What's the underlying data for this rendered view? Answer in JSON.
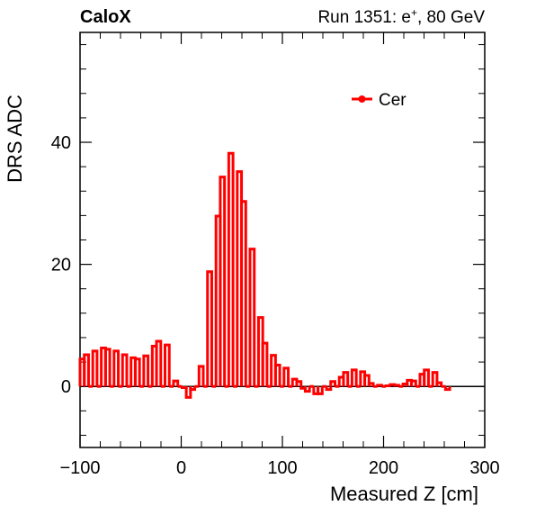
{
  "header": {
    "left_label": "CaloX",
    "right_prefix": "Run 1351: e",
    "right_sup": "+",
    "right_suffix": ", 80 GeV"
  },
  "chart_data": {
    "type": "line",
    "xlabel": "Measured Z [cm]",
    "ylabel": "DRS ADC",
    "xlim": [
      -100,
      300
    ],
    "ylim": [
      -10,
      58
    ],
    "xticks": [
      -100,
      0,
      100,
      200,
      300
    ],
    "xtick_labels": [
      "−100",
      "0",
      "100",
      "200",
      "300"
    ],
    "yticks": [
      0,
      20,
      40
    ],
    "ytick_labels": [
      "0",
      "20",
      "40"
    ],
    "grid": false,
    "legend_position": "top-right",
    "zero_line": true,
    "series": [
      {
        "name": "Cer",
        "color": "#ff0000",
        "bin_width": 4.2,
        "x_start": -100,
        "values": [
          4.5,
          5.2,
          0,
          5.8,
          0,
          6.3,
          6.1,
          0,
          5.8,
          0,
          5.2,
          0,
          4.7,
          4.5,
          0,
          5.0,
          0,
          6.6,
          7.4,
          0,
          6.8,
          0,
          0.9,
          0,
          -0.2,
          -1.8,
          -0.5,
          0,
          3.3,
          0,
          18.8,
          0,
          27.9,
          34.3,
          0,
          38.2,
          0,
          35.2,
          30.3,
          0,
          22.5,
          0,
          11.3,
          7.1,
          0,
          5.1,
          3.5,
          0,
          3.0,
          0,
          1.2,
          0.8,
          -0.3,
          -0.8,
          0,
          -1.2,
          -1.2,
          0,
          -0.5,
          0.8,
          0,
          1.5,
          2.3,
          0,
          2.7,
          0,
          2.4,
          1.8,
          0.5,
          0,
          0.2,
          0,
          0.1,
          0.3,
          0.2,
          0,
          0.4,
          1.0,
          0.9,
          0,
          2.0,
          2.7,
          0,
          2.3,
          0.6,
          0,
          -0.5
        ]
      }
    ]
  }
}
